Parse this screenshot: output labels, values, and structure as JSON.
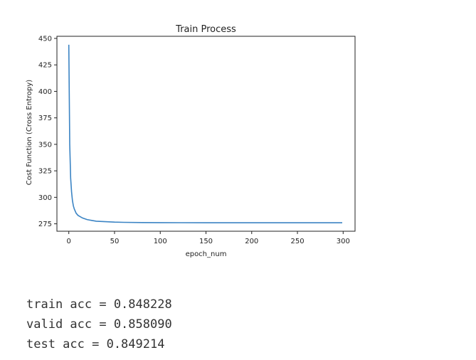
{
  "chart_data": {
    "type": "line",
    "title": "Train Process",
    "xlabel": "epoch_num",
    "ylabel": "Cost Function (Cross Entropy)",
    "xlim": [
      -13,
      313
    ],
    "ylim": [
      268,
      452
    ],
    "xticks": [
      0,
      50,
      100,
      150,
      200,
      250,
      300
    ],
    "yticks": [
      275,
      300,
      325,
      350,
      375,
      400,
      425,
      450
    ],
    "grid": false,
    "line_color": "#3b84c4",
    "series": [
      {
        "x": [
          0,
          1,
          2,
          3,
          4,
          5,
          6,
          7,
          8,
          10,
          12,
          15,
          20,
          25,
          30,
          40,
          50,
          60,
          80,
          100,
          150,
          200,
          250,
          299
        ],
        "values": [
          444,
          350,
          318,
          305,
          297,
          292,
          289,
          287,
          285,
          283,
          282,
          280.5,
          279,
          278.2,
          277.5,
          277,
          276.6,
          276.4,
          276.2,
          276.1,
          276,
          276,
          276,
          276
        ]
      }
    ]
  },
  "output": {
    "lines": [
      "train acc = 0.848228",
      "valid acc = 0.858090",
      "test acc = 0.849214"
    ]
  }
}
